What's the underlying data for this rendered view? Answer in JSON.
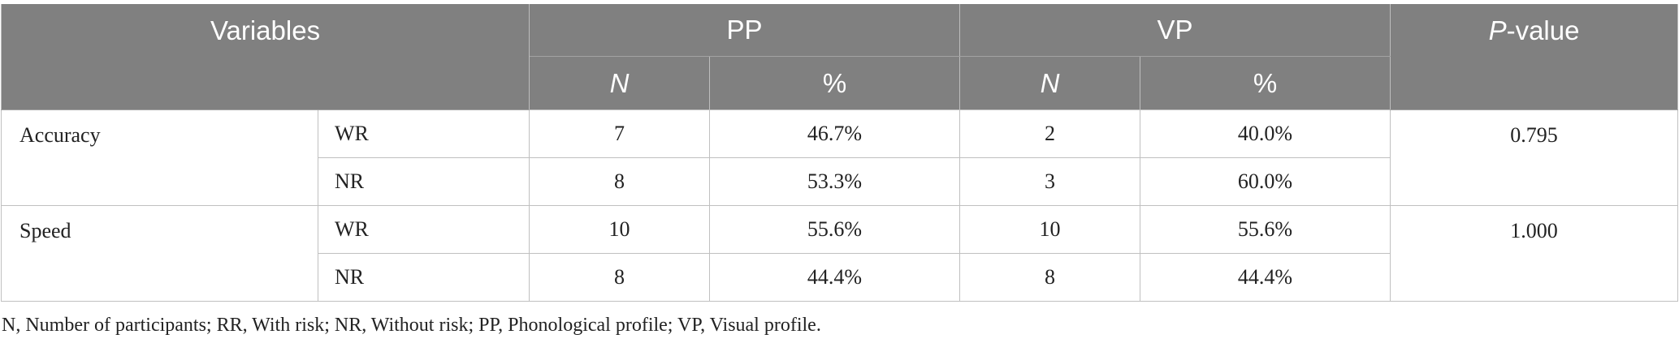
{
  "header": {
    "variables": "Variables",
    "groups": [
      "PP",
      "VP"
    ],
    "pvalue_prefix": "P",
    "pvalue_suffix": "-value",
    "sub": {
      "n": "N",
      "pct": "%"
    }
  },
  "rows": [
    {
      "variable": "Accuracy",
      "pvalue": "0.795",
      "levels": [
        {
          "label": "WR",
          "pp_n": "7",
          "pp_pct": "46.7%",
          "vp_n": "2",
          "vp_pct": "40.0%"
        },
        {
          "label": "NR",
          "pp_n": "8",
          "pp_pct": "53.3%",
          "vp_n": "3",
          "vp_pct": "60.0%"
        }
      ]
    },
    {
      "variable": "Speed",
      "pvalue": "1.000",
      "levels": [
        {
          "label": "WR",
          "pp_n": "10",
          "pp_pct": "55.6%",
          "vp_n": "10",
          "vp_pct": "55.6%"
        },
        {
          "label": "NR",
          "pp_n": "8",
          "pp_pct": "44.4%",
          "vp_n": "8",
          "vp_pct": "44.4%"
        }
      ]
    }
  ],
  "footnote": "N, Number of participants; RR, With risk; NR, Without risk; PP, Phonological profile; VP, Visual profile."
}
